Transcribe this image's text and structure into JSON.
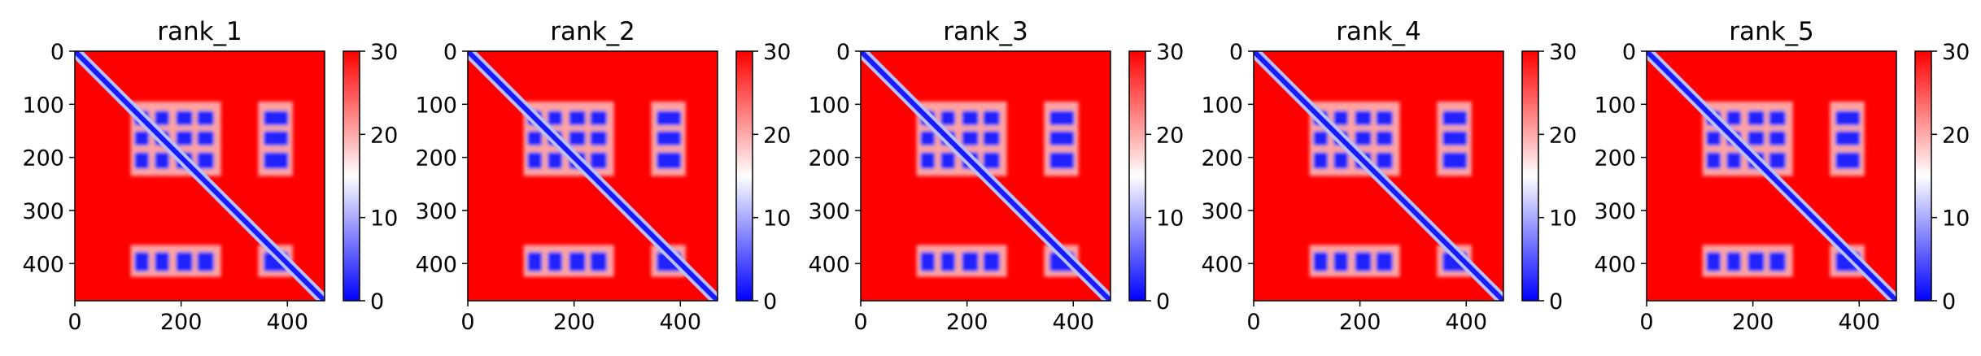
{
  "chart_data": [
    {
      "type": "heatmap",
      "title": "rank_1",
      "xticks": [
        "0",
        "200",
        "400"
      ],
      "yticks": [
        "0",
        "100",
        "200",
        "300",
        "400"
      ],
      "xlim": [
        0,
        470
      ],
      "ylim": [
        470,
        0
      ],
      "colorbar": {
        "ticks": [
          "0",
          "10",
          "20",
          "30"
        ],
        "range": [
          0,
          30
        ],
        "colormap": "bwr"
      }
    },
    {
      "type": "heatmap",
      "title": "rank_2",
      "xticks": [
        "0",
        "200",
        "400"
      ],
      "yticks": [
        "0",
        "100",
        "200",
        "300",
        "400"
      ],
      "xlim": [
        0,
        470
      ],
      "ylim": [
        470,
        0
      ],
      "colorbar": {
        "ticks": [
          "0",
          "10",
          "20",
          "30"
        ],
        "range": [
          0,
          30
        ],
        "colormap": "bwr"
      }
    },
    {
      "type": "heatmap",
      "title": "rank_3",
      "xticks": [
        "0",
        "200",
        "400"
      ],
      "yticks": [
        "0",
        "100",
        "200",
        "300",
        "400"
      ],
      "xlim": [
        0,
        470
      ],
      "ylim": [
        470,
        0
      ],
      "colorbar": {
        "ticks": [
          "0",
          "10",
          "20",
          "30"
        ],
        "range": [
          0,
          30
        ],
        "colormap": "bwr"
      }
    },
    {
      "type": "heatmap",
      "title": "rank_4",
      "xticks": [
        "0",
        "200",
        "400"
      ],
      "yticks": [
        "0",
        "100",
        "200",
        "300",
        "400"
      ],
      "xlim": [
        0,
        470
      ],
      "ylim": [
        470,
        0
      ],
      "colorbar": {
        "ticks": [
          "0",
          "10",
          "20",
          "30"
        ],
        "range": [
          0,
          30
        ],
        "colormap": "bwr"
      }
    },
    {
      "type": "heatmap",
      "title": "rank_5",
      "xticks": [
        "0",
        "200",
        "400"
      ],
      "yticks": [
        "0",
        "100",
        "200",
        "300",
        "400"
      ],
      "xlim": [
        0,
        470
      ],
      "ylim": [
        470,
        0
      ],
      "colorbar": {
        "ticks": [
          "0",
          "10",
          "20",
          "30"
        ],
        "range": [
          0,
          30
        ],
        "colormap": "bwr"
      }
    }
  ],
  "colors": {
    "low": "#0000ff",
    "mid": "#ffffff",
    "high": "#ff0000"
  }
}
